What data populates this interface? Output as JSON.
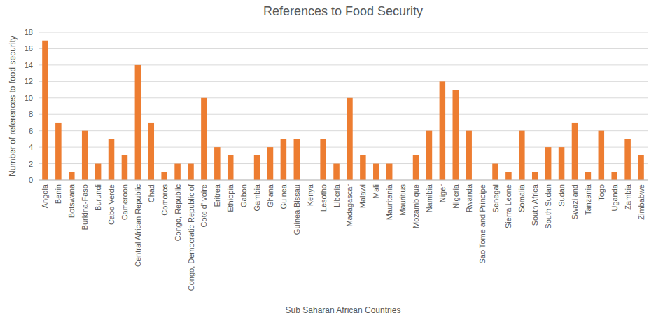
{
  "chart_data": {
    "type": "bar",
    "title": "References to Food Security",
    "x_label": "Sub Saharan African Countries",
    "y_label": "Number of references to food security",
    "categories": [
      "Angola",
      "Benin",
      "Botswana",
      "Burkina-Faso",
      "Burundi",
      "Cabo Verde",
      "Cameroon",
      "Central African Republic",
      "Chad",
      "Comoros",
      "Congo, Republic",
      "Congo, Democratic Republic of",
      "Cote d'Ivoire",
      "Eritrea",
      "Ethiopia",
      "Gabon",
      "Gambia",
      "Ghana",
      "Guinea",
      "Guinea-Bissau",
      "Kenya",
      "Lesotho",
      "Liberia",
      "Madagascar",
      "Malawi",
      "Mali",
      "Mauritania",
      "Mauritius",
      "Mozambique",
      "Namibia",
      "Niger",
      "Nigeria",
      "Rwanda",
      "Sao Tome and Principe",
      "Senegal",
      "Sierra Leone",
      "Somalia",
      "South Africa",
      "South Sudan",
      "Sudan",
      "Swaziland",
      "Tanzania",
      "Togo",
      "Uganda",
      "Zambia",
      "Zimbabwe"
    ],
    "values": [
      17,
      7,
      1,
      6,
      2,
      5,
      3,
      14,
      7,
      1,
      2,
      2,
      10,
      4,
      3,
      0,
      3,
      4,
      5,
      5,
      0,
      5,
      2,
      10,
      3,
      2,
      2,
      0,
      3,
      6,
      12,
      11,
      6,
      0,
      2,
      1,
      6,
      1,
      4,
      4,
      7,
      1,
      6,
      1,
      5,
      3
    ],
    "color": "#ed7d31",
    "ylim": [
      0,
      18
    ],
    "yticks": [
      0,
      2,
      4,
      6,
      8,
      10,
      12,
      14,
      16,
      18
    ],
    "grid": true
  }
}
